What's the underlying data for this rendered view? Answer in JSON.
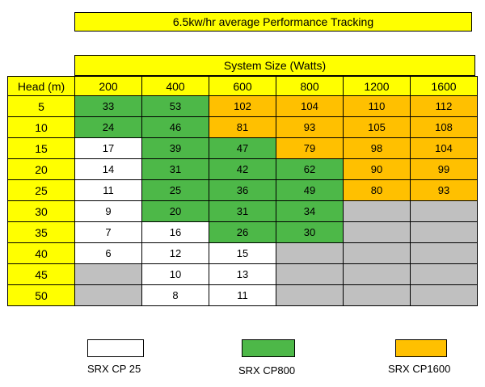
{
  "title": "6.5kw/hr average Performance Tracking",
  "system_size_label": "System Size (Watts)",
  "head_label": "Head (m)",
  "colors": {
    "SRX CP 25": "#ffffff",
    "SRX CP800": "#4db848",
    "SRX CP1600": "#ffc000",
    "none": "#c0c0c0",
    "header": "#ffff00"
  },
  "chart_data": {
    "type": "table",
    "columns": [
      "200",
      "400",
      "600",
      "800",
      "1200",
      "1600"
    ],
    "rows": [
      {
        "head": "5",
        "cells": [
          {
            "v": "33",
            "c": "SRX CP800"
          },
          {
            "v": "53",
            "c": "SRX CP800"
          },
          {
            "v": "102",
            "c": "SRX CP1600"
          },
          {
            "v": "104",
            "c": "SRX CP1600"
          },
          {
            "v": "110",
            "c": "SRX CP1600"
          },
          {
            "v": "112",
            "c": "SRX CP1600"
          }
        ]
      },
      {
        "head": "10",
        "cells": [
          {
            "v": "24",
            "c": "SRX CP800"
          },
          {
            "v": "46",
            "c": "SRX CP800"
          },
          {
            "v": "81",
            "c": "SRX CP1600"
          },
          {
            "v": "93",
            "c": "SRX CP1600"
          },
          {
            "v": "105",
            "c": "SRX CP1600"
          },
          {
            "v": "108",
            "c": "SRX CP1600"
          }
        ]
      },
      {
        "head": "15",
        "cells": [
          {
            "v": "17",
            "c": "SRX CP 25"
          },
          {
            "v": "39",
            "c": "SRX CP800"
          },
          {
            "v": "47",
            "c": "SRX CP800"
          },
          {
            "v": "79",
            "c": "SRX CP1600"
          },
          {
            "v": "98",
            "c": "SRX CP1600"
          },
          {
            "v": "104",
            "c": "SRX CP1600"
          }
        ]
      },
      {
        "head": "20",
        "cells": [
          {
            "v": "14",
            "c": "SRX CP 25"
          },
          {
            "v": "31",
            "c": "SRX CP800"
          },
          {
            "v": "42",
            "c": "SRX CP800"
          },
          {
            "v": "62",
            "c": "SRX CP800"
          },
          {
            "v": "90",
            "c": "SRX CP1600"
          },
          {
            "v": "99",
            "c": "SRX CP1600"
          }
        ]
      },
      {
        "head": "25",
        "cells": [
          {
            "v": "11",
            "c": "SRX CP 25"
          },
          {
            "v": "25",
            "c": "SRX CP800"
          },
          {
            "v": "36",
            "c": "SRX CP800"
          },
          {
            "v": "49",
            "c": "SRX CP800"
          },
          {
            "v": "80",
            "c": "SRX CP1600"
          },
          {
            "v": "93",
            "c": "SRX CP1600"
          }
        ]
      },
      {
        "head": "30",
        "cells": [
          {
            "v": "9",
            "c": "SRX CP 25"
          },
          {
            "v": "20",
            "c": "SRX CP800"
          },
          {
            "v": "31",
            "c": "SRX CP800"
          },
          {
            "v": "34",
            "c": "SRX CP800"
          },
          {
            "v": "",
            "c": "none"
          },
          {
            "v": "",
            "c": "none"
          }
        ]
      },
      {
        "head": "35",
        "cells": [
          {
            "v": "7",
            "c": "SRX CP 25"
          },
          {
            "v": "16",
            "c": "SRX CP 25"
          },
          {
            "v": "26",
            "c": "SRX CP800"
          },
          {
            "v": "30",
            "c": "SRX CP800"
          },
          {
            "v": "",
            "c": "none"
          },
          {
            "v": "",
            "c": "none"
          }
        ]
      },
      {
        "head": "40",
        "cells": [
          {
            "v": "6",
            "c": "SRX CP 25"
          },
          {
            "v": "12",
            "c": "SRX CP 25"
          },
          {
            "v": "15",
            "c": "SRX CP 25"
          },
          {
            "v": "",
            "c": "none"
          },
          {
            "v": "",
            "c": "none"
          },
          {
            "v": "",
            "c": "none"
          }
        ]
      },
      {
        "head": "45",
        "cells": [
          {
            "v": "",
            "c": "none"
          },
          {
            "v": "10",
            "c": "SRX CP 25"
          },
          {
            "v": "13",
            "c": "SRX CP 25"
          },
          {
            "v": "",
            "c": "none"
          },
          {
            "v": "",
            "c": "none"
          },
          {
            "v": "",
            "c": "none"
          }
        ]
      },
      {
        "head": "50",
        "cells": [
          {
            "v": "",
            "c": "none"
          },
          {
            "v": "8",
            "c": "SRX CP 25"
          },
          {
            "v": "11",
            "c": "SRX CP 25"
          },
          {
            "v": "",
            "c": "none"
          },
          {
            "v": "",
            "c": "none"
          },
          {
            "v": "",
            "c": "none"
          }
        ]
      }
    ]
  },
  "legend": [
    {
      "label": "SRX CP 25",
      "color": "#ffffff"
    },
    {
      "label": "SRX CP800",
      "color": "#4db848"
    },
    {
      "label": "SRX CP1600",
      "color": "#ffc000"
    }
  ]
}
